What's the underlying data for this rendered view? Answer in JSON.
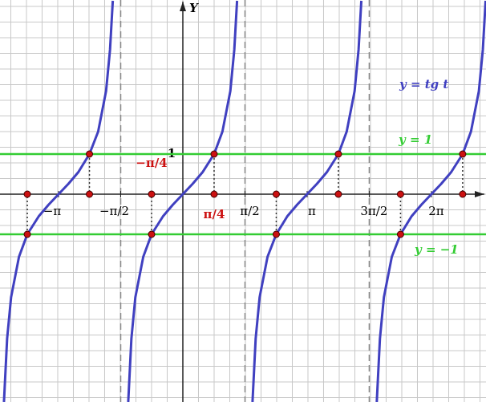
{
  "chart_data": {
    "type": "line",
    "title": "y = tg t",
    "ylabel": "Y",
    "xlim": [
      -4.62,
      7.66
    ],
    "ylim": [
      -5.18,
      4.84
    ],
    "xticks": [
      {
        "value": -3.14,
        "label": "−π"
      },
      {
        "value": -1.57,
        "label": "−π/2"
      },
      {
        "value": 1.57,
        "label": "π/2"
      },
      {
        "value": 3.14,
        "label": "π"
      },
      {
        "value": 4.71,
        "label": "3π/2"
      },
      {
        "value": 6.28,
        "label": "2π"
      }
    ],
    "yticks": [
      1
    ],
    "asymptotes": [
      -1.57,
      1.57,
      4.71
    ],
    "grid": true,
    "series": [
      {
        "name": "y = tg t",
        "color": "#4040c0",
        "x": [
          -4.52,
          -4.44,
          -4.34,
          -4.14,
          -3.93,
          -3.64,
          -3.39,
          -3.14,
          -2.89,
          -2.64,
          -2.36,
          -2.14,
          -1.94,
          -1.84,
          -1.77,
          -1.57,
          -1.38,
          -1.3,
          -1.2,
          -1,
          -0.79,
          -0.5,
          -0.25,
          0,
          0.25,
          0.5,
          0.79,
          1,
          1.2,
          1.3,
          1.37,
          1.57,
          1.76,
          1.84,
          1.94,
          2.14,
          2.36,
          2.64,
          2.89,
          3.14,
          3.39,
          3.64,
          3.93,
          4.14,
          4.34,
          4.44,
          4.51,
          4.71,
          4.9,
          4.98,
          5.08,
          5.28,
          5.5,
          5.78,
          6.03,
          6.28,
          6.53,
          6.78,
          7.07,
          7.28,
          7.48,
          7.58,
          7.65
        ],
        "values": [
          -5.18,
          -3.6,
          -2.57,
          -1.56,
          -1,
          -0.55,
          -0.26,
          0,
          0.26,
          0.55,
          1,
          1.56,
          2.57,
          3.6,
          4.82,
          null,
          -5.18,
          -3.6,
          -2.57,
          -1.56,
          -1,
          -0.55,
          -0.26,
          0,
          0.26,
          0.55,
          1,
          1.56,
          2.57,
          3.6,
          4.82,
          null,
          -5.18,
          -3.6,
          -2.57,
          -1.56,
          -1,
          -0.55,
          -0.26,
          0,
          0.26,
          0.55,
          1,
          1.56,
          2.57,
          3.6,
          4.82,
          null,
          -5.18,
          -3.6,
          -2.57,
          -1.56,
          -1,
          -0.55,
          -0.26,
          0,
          0.26,
          0.55,
          1,
          1.56,
          2.57,
          3.6,
          4.82
        ]
      }
    ],
    "hlines": [
      {
        "name": "y = 1",
        "value": 1,
        "color": "#33cc33"
      },
      {
        "name": "y = −1",
        "value": -1,
        "color": "#33cc33"
      }
    ],
    "points": {
      "color": "#cc1111",
      "x": [
        -2.36,
        0.79,
        3.93,
        7.07,
        -3.93,
        -0.79,
        2.36,
        5.5
      ],
      "values": [
        1,
        1,
        1,
        1,
        -1,
        -1,
        -1,
        -1
      ]
    },
    "annotations": [
      {
        "text": "−π/4",
        "x": -0.79,
        "color": "#cc1111"
      },
      {
        "text": "π/4",
        "x": 0.79,
        "color": "#cc1111"
      }
    ]
  }
}
